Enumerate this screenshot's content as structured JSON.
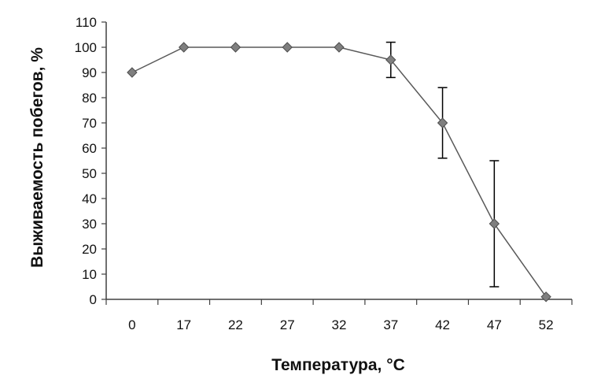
{
  "chart_data": {
    "type": "line",
    "xlabel": "Температура, °C",
    "ylabel": "Выживаемость побегов, %",
    "categories": [
      "0",
      "17",
      "22",
      "27",
      "32",
      "37",
      "42",
      "47",
      "52"
    ],
    "series": [
      {
        "values": [
          90,
          100,
          100,
          100,
          100,
          95,
          70,
          30,
          1
        ],
        "error_bars": [
          0,
          0,
          0,
          0,
          0,
          7,
          14,
          25,
          0
        ],
        "marker": "diamond",
        "color": "#7f7f7f",
        "line_color": "#595959"
      }
    ],
    "ylim": [
      0,
      110
    ],
    "yticks": [
      "0",
      "10",
      "20",
      "30",
      "40",
      "50",
      "60",
      "70",
      "80",
      "90",
      "100",
      "110"
    ],
    "grid": false,
    "legend": "none"
  }
}
